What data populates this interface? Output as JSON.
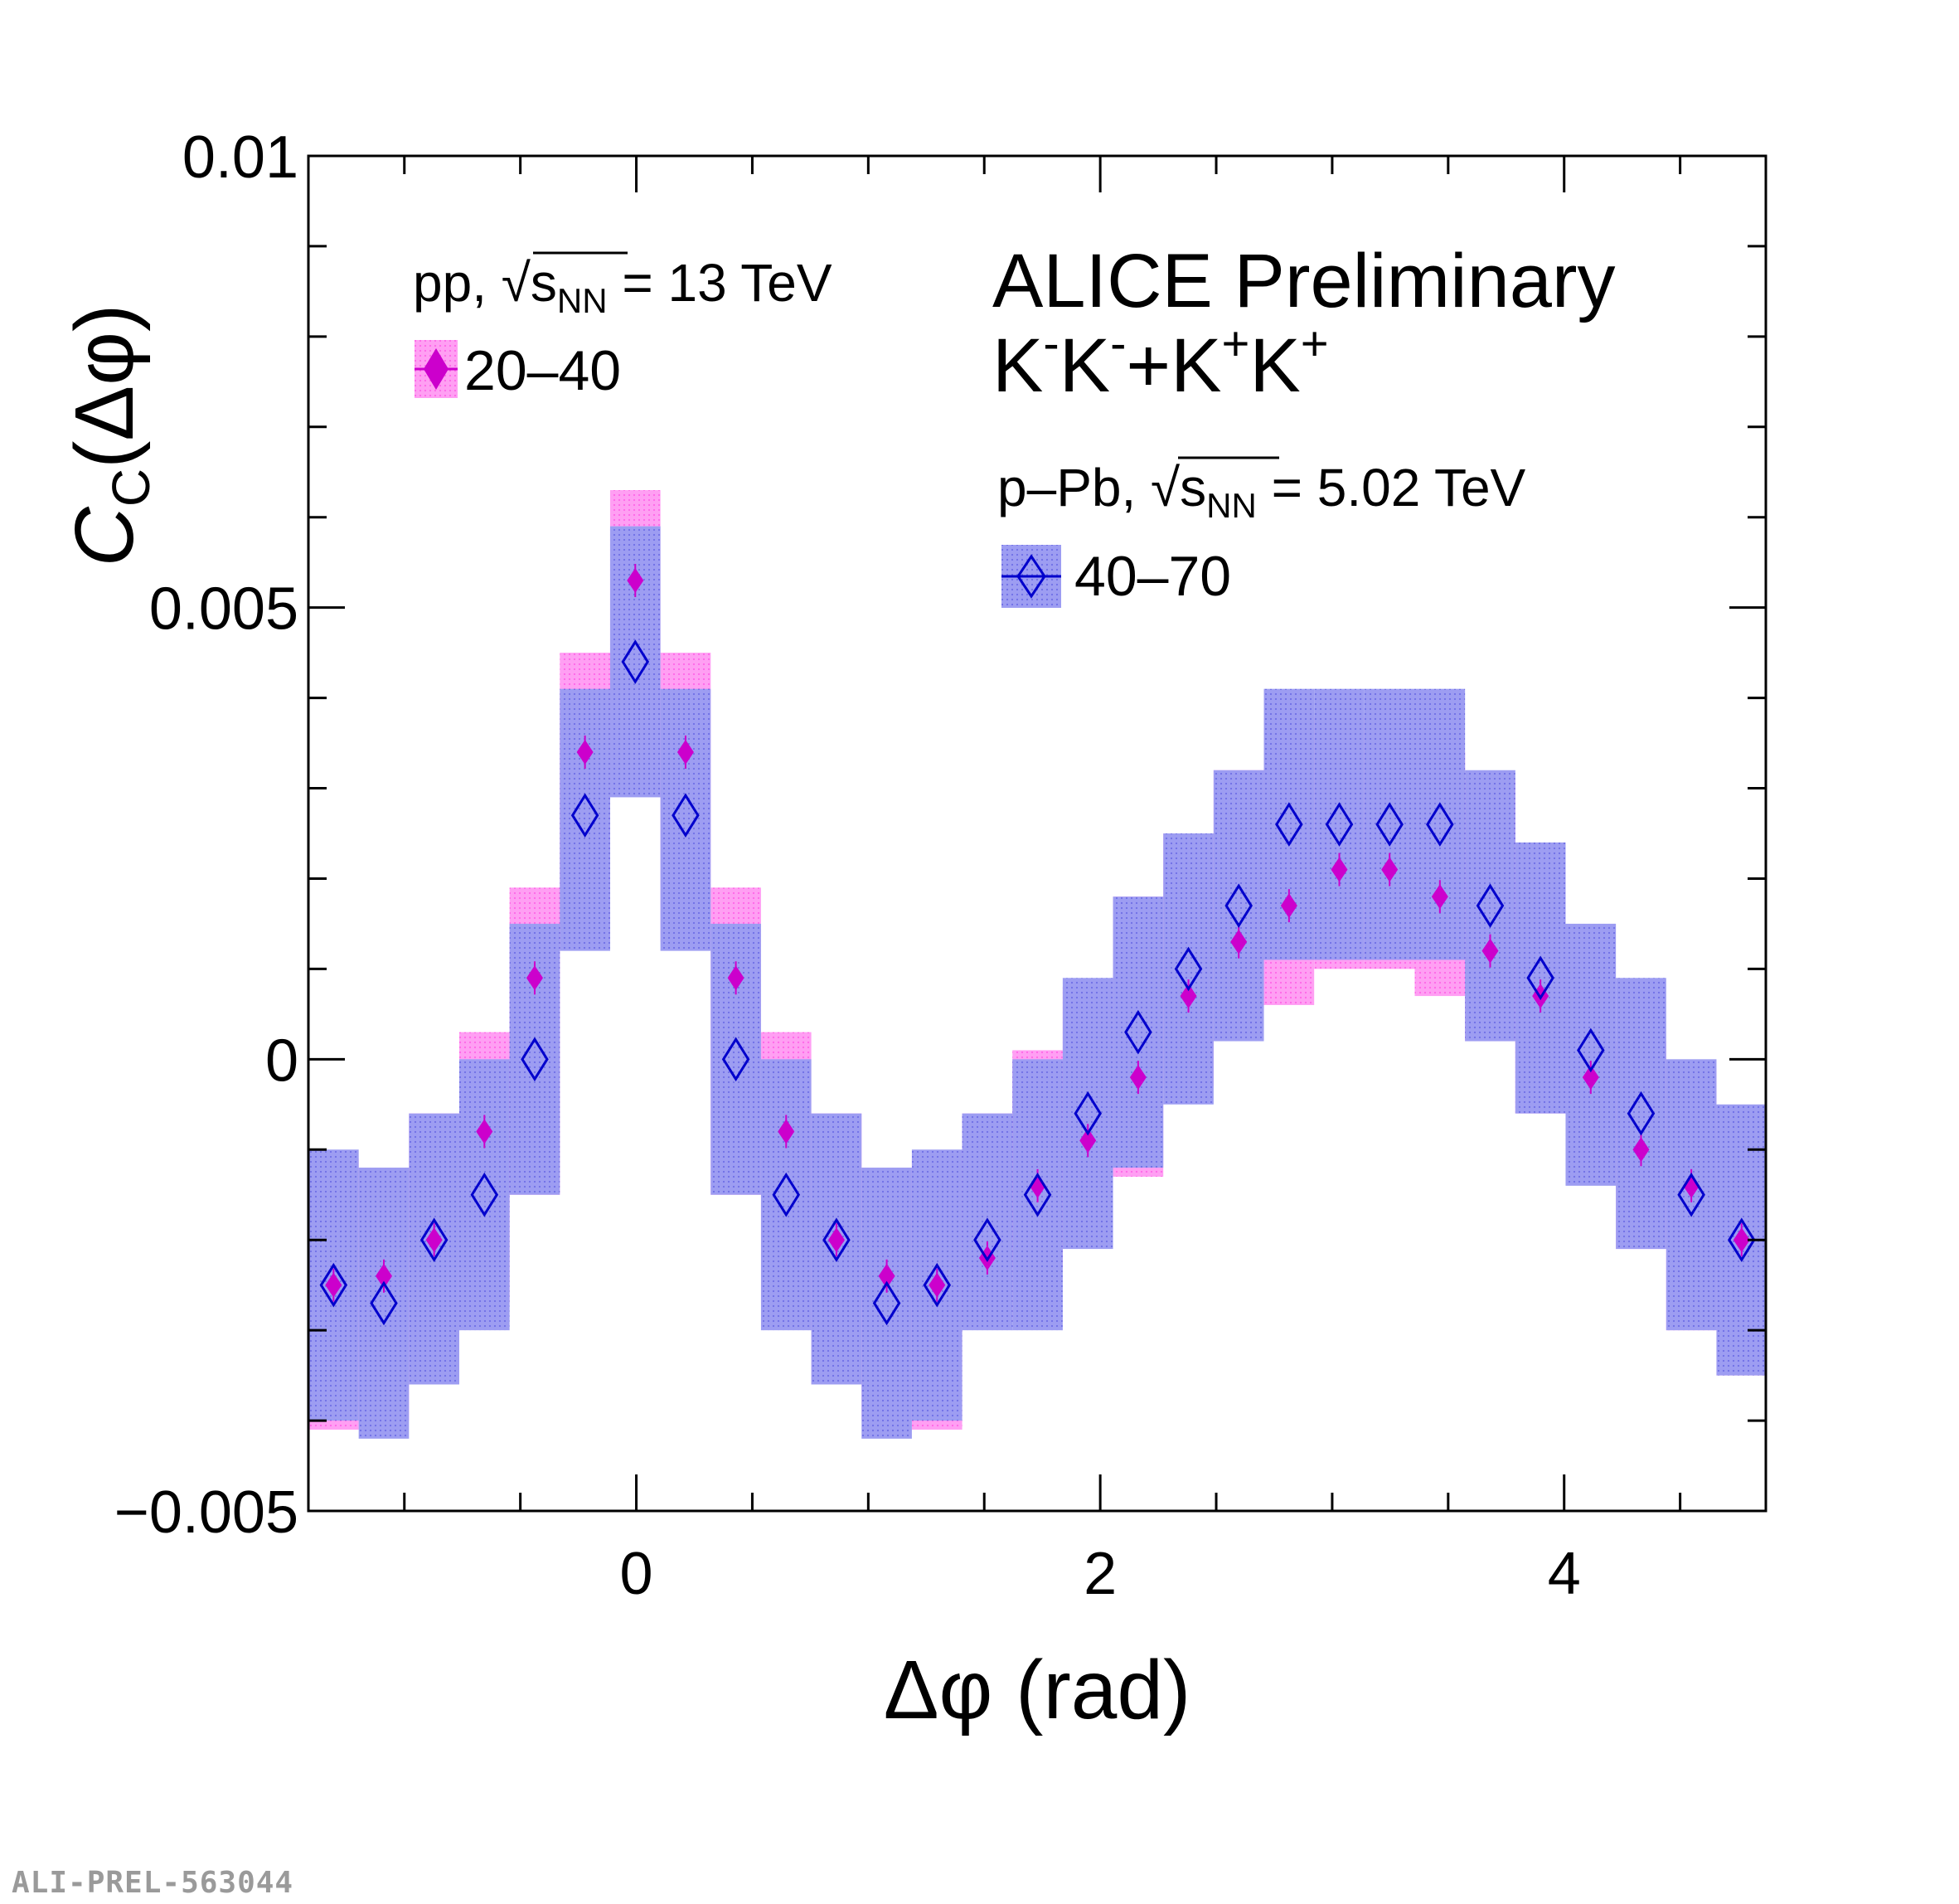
{
  "chart_data": {
    "type": "scatter",
    "title": "ALICE Preliminary",
    "subtitle": "K⁻K⁻+K⁺K⁺",
    "xlabel": "Δφ (rad)",
    "ylabel": "C_C(Δφ)",
    "ylabel_main": "C",
    "ylabel_sub": "C",
    "ylabel_tail": "(Δφ)",
    "xlim": [
      -1.4137,
      4.8695
    ],
    "ylim": [
      -0.005,
      0.01
    ],
    "x_ticks": [
      0,
      2,
      4
    ],
    "x_tick_labels": [
      "0",
      "2",
      "4"
    ],
    "y_ticks": [
      -0.005,
      0,
      0.005,
      0.01
    ],
    "y_tick_labels": [
      "−0.005",
      "0",
      "0.005",
      "0.01"
    ],
    "bin_width": 0.2168,
    "x": [
      -1.3053,
      -1.0885,
      -0.8717,
      -0.6549,
      -0.4381,
      -0.2213,
      -0.0045,
      0.2123,
      0.4291,
      0.6459,
      0.8627,
      1.0795,
      1.2963,
      1.5131,
      1.7299,
      1.9467,
      2.1635,
      2.3803,
      2.5971,
      2.8139,
      3.0307,
      3.2475,
      3.4643,
      3.6811,
      3.8979,
      4.1147,
      4.3315,
      4.5483,
      4.7651
    ],
    "series": [
      {
        "name": "20–40",
        "legend_header": "pp, √s_NN = 13 TeV",
        "header_prefix": "pp, ",
        "header_suffix": " = 13 TeV",
        "color": "#cc00cc",
        "band_color": "#ff8cf0",
        "marker": "filled-diamond",
        "values": [
          -0.0025,
          -0.0024,
          -0.002,
          -0.0008,
          0.0009,
          0.0034,
          0.0053,
          0.0034,
          0.0009,
          -0.0008,
          -0.002,
          -0.0024,
          -0.0025,
          -0.0022,
          -0.0014,
          -0.0009,
          -0.0002,
          0.0007,
          0.0013,
          0.0017,
          0.0021,
          0.0021,
          0.0018,
          0.0012,
          0.0007,
          -0.0002,
          -0.001,
          -0.0014,
          -0.002
        ],
        "sys_low": [
          -0.0041,
          -0.004,
          -0.0036,
          -0.0027,
          -0.0015,
          0.0013,
          0.0043,
          0.0013,
          -0.0015,
          -0.0027,
          -0.0036,
          -0.004,
          -0.0041,
          -0.0029,
          -0.0023,
          -0.0013,
          -0.0013,
          -0.0003,
          0.0006,
          0.0006,
          0.001,
          0.001,
          0.0007,
          0.0002,
          -0.0006,
          -0.0013,
          -0.0021,
          -0.003,
          -0.0035
        ],
        "sys_high": [
          -0.0011,
          -0.0012,
          -0.0006,
          0.0003,
          0.0019,
          0.0045,
          0.0063,
          0.0045,
          0.0019,
          0.0003,
          -0.0006,
          -0.0012,
          -0.0011,
          -0.0006,
          0.0001,
          0.0008,
          0.0018,
          0.0025,
          0.0032,
          0.0038,
          0.0038,
          0.0038,
          0.0034,
          0.0031,
          0.0021,
          0.0009,
          0.0002,
          -0.0001,
          -0.0006
        ]
      },
      {
        "name": "40–70",
        "legend_header": "p–Pb, √s_NN = 5.02 TeV",
        "header_prefix": "p–Pb, ",
        "header_suffix": " = 5.02 TeV",
        "color": "#0000cc",
        "band_color": "#8c8cf0",
        "marker": "open-diamond",
        "values": [
          -0.0025,
          -0.0027,
          -0.002,
          -0.0015,
          0.0,
          0.0027,
          0.0044,
          0.0027,
          0.0,
          -0.0015,
          -0.002,
          -0.0027,
          -0.0025,
          -0.002,
          -0.0015,
          -0.0006,
          0.0003,
          0.001,
          0.0017,
          0.0026,
          0.0026,
          0.0026,
          0.0026,
          0.0017,
          0.0009,
          0.0001,
          -0.0006,
          -0.0015,
          -0.002
        ],
        "sys_low": [
          -0.004,
          -0.0042,
          -0.0036,
          -0.003,
          -0.0015,
          0.0012,
          0.0029,
          0.0012,
          -0.0015,
          -0.003,
          -0.0036,
          -0.0042,
          -0.004,
          -0.003,
          -0.003,
          -0.0021,
          -0.0012,
          -0.0005,
          0.0002,
          0.0011,
          0.0011,
          0.0011,
          0.0011,
          0.0002,
          -0.0006,
          -0.0014,
          -0.0021,
          -0.003,
          -0.0035
        ],
        "sys_high": [
          -0.001,
          -0.0012,
          -0.0006,
          0.0,
          0.0015,
          0.0041,
          0.0059,
          0.0041,
          0.0015,
          0.0,
          -0.0006,
          -0.0012,
          -0.001,
          -0.0006,
          0.0,
          0.0009,
          0.0018,
          0.0025,
          0.0032,
          0.0041,
          0.0041,
          0.0041,
          0.0041,
          0.0032,
          0.0024,
          0.0015,
          0.0009,
          0.0,
          -0.0005
        ]
      }
    ],
    "legend_placement": "top-left and center-right",
    "grid": false
  },
  "watermark": "ALI-PREL-563044"
}
